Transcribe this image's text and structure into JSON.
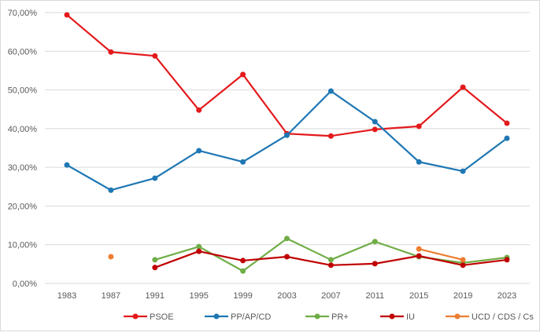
{
  "chart_data": {
    "type": "line",
    "title": "",
    "xlabel": "",
    "ylabel": "",
    "categories": [
      "1983",
      "1987",
      "1991",
      "1995",
      "1999",
      "2003",
      "2007",
      "2011",
      "2015",
      "2019",
      "2023"
    ],
    "ylim": [
      0,
      70
    ],
    "yticks": [
      "0,00%",
      "10,00%",
      "20,00%",
      "30,00%",
      "40,00%",
      "50,00%",
      "60,00%",
      "70,00%"
    ],
    "grid": true,
    "legend": "bottom",
    "series": [
      {
        "name": "PSOE",
        "color": "#e31a1c",
        "values": [
          69.4,
          59.8,
          58.8,
          44.8,
          54.0,
          38.7,
          38.1,
          39.8,
          40.6,
          50.7,
          41.4
        ]
      },
      {
        "name": "PP/AP/CD",
        "color": "#1f77b4",
        "values": [
          30.6,
          24.1,
          27.2,
          34.3,
          31.4,
          38.3,
          49.7,
          41.8,
          31.4,
          29.0,
          37.5
        ]
      },
      {
        "name": "PR+",
        "color": "#70ad47",
        "values": [
          null,
          null,
          6.1,
          9.5,
          3.2,
          11.6,
          6.1,
          10.8,
          6.9,
          5.3,
          6.7
        ]
      },
      {
        "name": "IU",
        "color": "#c00000",
        "values": [
          null,
          null,
          4.1,
          8.3,
          5.9,
          6.9,
          4.7,
          5.1,
          7.1,
          4.7,
          6.1
        ]
      },
      {
        "name": "UCD / CDS / Cs",
        "color": "#ed7d31",
        "values": [
          null,
          6.9,
          null,
          null,
          null,
          null,
          null,
          null,
          8.9,
          6.1,
          null
        ]
      }
    ]
  }
}
